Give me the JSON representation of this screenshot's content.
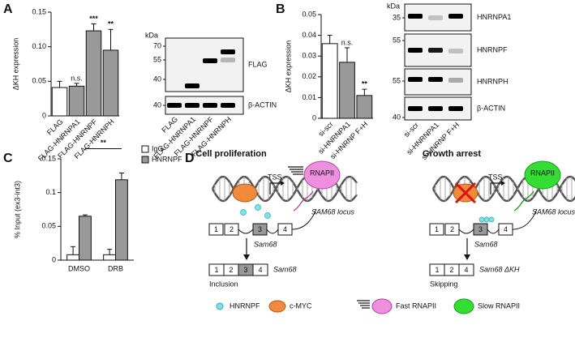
{
  "panel_labels": [
    "A",
    "B",
    "C",
    "D"
  ],
  "chart_data": [
    {
      "type": "bar",
      "ylabel": "ΔKH expression",
      "categories": [
        "FLAG",
        "FLAG-HNRNPA1",
        "FLAG-HNRNPF",
        "FLAG-HNRNPH"
      ],
      "values": [
        0.041,
        0.043,
        0.123,
        0.095
      ],
      "errors": [
        0.009,
        0.004,
        0.01,
        0.03
      ],
      "colors": [
        "#ffffff",
        "#999999",
        "#999999",
        "#999999"
      ],
      "annotations": [
        null,
        "n.s.",
        "***",
        "**"
      ],
      "ylim": [
        0,
        0.15
      ],
      "yticks": [
        0,
        0.05,
        {
          "value": 0.1,
          "label": "0.10"
        },
        0.15
      ],
      "grid": false
    },
    {
      "type": "bar",
      "ylabel": "ΔKH expression",
      "categories": [
        "si-scr",
        "si-HNRNPA1",
        "si-HNRNP F+H"
      ],
      "values": [
        0.036,
        0.027,
        0.011
      ],
      "errors": [
        0.004,
        0.007,
        0.003
      ],
      "colors": [
        "#ffffff",
        "#999999",
        "#999999"
      ],
      "annotations": [
        null,
        "n.s.",
        "**"
      ],
      "ylim": [
        0,
        0.05
      ],
      "yticks": [
        0,
        0.01,
        0.02,
        0.03,
        0.04,
        0.05
      ],
      "grid": false
    },
    {
      "type": "grouped_bar",
      "ylabel": "% Input (ex3-int3)",
      "categories": [
        "DMSO",
        "DRB"
      ],
      "series": [
        {
          "name": "IgG",
          "color": "#ffffff",
          "values": [
            0.008,
            0.008
          ],
          "errors": [
            0.012,
            0.008
          ]
        },
        {
          "name": "HNRNPF",
          "color": "#999999",
          "values": [
            0.065,
            0.119
          ],
          "errors": [
            0.002,
            0.01
          ]
        }
      ],
      "annotation": "**",
      "ylim": [
        0,
        0.15
      ],
      "yticks": [
        0,
        0.05,
        0.1,
        0.15
      ],
      "grid": false,
      "legend": "upper-right"
    }
  ],
  "blots": [
    {
      "kda": "kDa",
      "rows": [
        {
          "target": "FLAG",
          "markers": [
            70,
            55,
            40
          ]
        },
        {
          "target": "β-ACTIN",
          "markers": [
            40
          ]
        }
      ]
    },
    {
      "kda": "kDa",
      "rows": [
        {
          "target": "HNRNPA1",
          "markers": [
            35
          ]
        },
        {
          "target": "HNRNPF",
          "markers": [
            55
          ]
        },
        {
          "target": "HNRNPH",
          "markers": [
            55
          ]
        },
        {
          "target": "β-ACTIN",
          "markers": [
            40
          ]
        }
      ]
    }
  ],
  "diagram": {
    "states": [
      {
        "title": "Cell proliferation",
        "tss": "TSS",
        "polymerase": "RNAPII",
        "locus": "SAM68 locus",
        "pre_mrna": "Sam68",
        "exons": [
          "1",
          "2",
          "3",
          "4"
        ],
        "mrna_exons": [
          "1",
          "2",
          "3",
          "4"
        ],
        "mrna": "Sam68",
        "outcome": "Inclusion"
      },
      {
        "title": "Growth arrest",
        "tss": "TSS",
        "polymerase": "RNAPII",
        "locus": "SAM68 locus",
        "pre_mrna": "Sam68",
        "exons": [
          "1",
          "2",
          "3",
          "4"
        ],
        "mrna_exons": [
          "1",
          "2",
          "4"
        ],
        "mrna": "Sam68 ΔKH",
        "outcome": "Skipping"
      }
    ],
    "legend": [
      "HNRNPF",
      "c-MYC",
      "Fast RNAPII",
      "Slow RNAPII"
    ]
  }
}
